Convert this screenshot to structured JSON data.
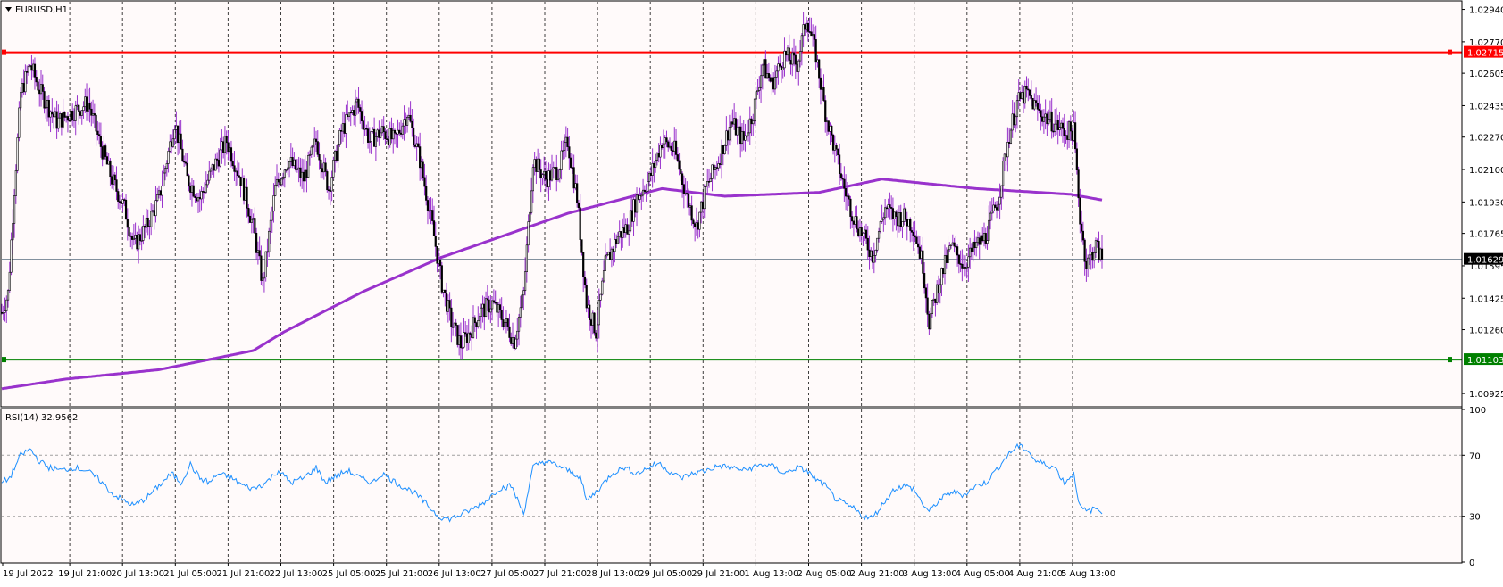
{
  "header": {
    "symbol_title": "EURUSD,H1",
    "menu_icon": "triangle-down-icon"
  },
  "indicator": {
    "label": "RSI(14) 32.9562"
  },
  "colors": {
    "background": "#fffafa",
    "candle": "#000000",
    "wick_purple": "#9932cc",
    "ma_line": "#9932cc",
    "resistance": "#ff0000",
    "support": "#008000",
    "rsi_line": "#1e90ff",
    "grid": "#000000",
    "current_price": "#708090"
  },
  "chart_data": [
    {
      "type": "candlestick",
      "title": "EURUSD,H1",
      "x_ticks": [
        "19 Jul 2022",
        "19 Jul 21:00",
        "20 Jul 13:00",
        "21 Jul 05:00",
        "21 Jul 21:00",
        "22 Jul 13:00",
        "25 Jul 05:00",
        "25 Jul 21:00",
        "26 Jul 13:00",
        "27 Jul 05:00",
        "27 Jul 21:00",
        "28 Jul 13:00",
        "29 Jul 05:00",
        "29 Jul 21:00",
        "1 Aug 13:00",
        "2 Aug 05:00",
        "2 Aug 21:00",
        "3 Aug 13:00",
        "4 Aug 05:00",
        "4 Aug 21:00",
        "5 Aug 13:00"
      ],
      "y_ticks": [
        "1.02940",
        "1.02770",
        "1.02605",
        "1.02435",
        "1.02270",
        "1.02100",
        "1.01930",
        "1.01765",
        "1.01595",
        "1.01425",
        "1.01260",
        "1.00925"
      ],
      "ylim": [
        1.0086,
        1.0298
      ],
      "levels": [
        {
          "name": "resistance",
          "value": 1.02715,
          "label": "1.02715"
        },
        {
          "name": "support",
          "value": 1.01103,
          "label": "1.01103"
        },
        {
          "name": "current-price",
          "value": 1.01629,
          "label": "1.01629"
        }
      ],
      "ma_series": {
        "anchors": [
          [
            0,
            1.0095
          ],
          [
            40,
            1.01
          ],
          [
            100,
            1.0105
          ],
          [
            160,
            1.0115
          ],
          [
            180,
            1.0125
          ],
          [
            230,
            1.0146
          ],
          [
            280,
            1.0164
          ],
          [
            360,
            1.0187
          ],
          [
            420,
            1.02
          ],
          [
            460,
            1.0196
          ],
          [
            520,
            1.0198
          ],
          [
            560,
            1.0205
          ],
          [
            620,
            1.02
          ],
          [
            680,
            1.0197
          ],
          [
            700,
            1.0194
          ]
        ]
      },
      "price_series": {
        "anchors": [
          [
            0,
            1.0135
          ],
          [
            4,
            1.0145
          ],
          [
            8,
            1.02
          ],
          [
            12,
            1.025
          ],
          [
            18,
            1.0265
          ],
          [
            25,
            1.025
          ],
          [
            35,
            1.0235
          ],
          [
            45,
            1.024
          ],
          [
            55,
            1.0245
          ],
          [
            62,
            1.0225
          ],
          [
            70,
            1.0205
          ],
          [
            78,
            1.019
          ],
          [
            84,
            1.017
          ],
          [
            92,
            1.018
          ],
          [
            100,
            1.0195
          ],
          [
            110,
            1.0235
          ],
          [
            118,
            1.0205
          ],
          [
            126,
            1.0195
          ],
          [
            134,
            1.021
          ],
          [
            143,
            1.0225
          ],
          [
            152,
            1.0205
          ],
          [
            160,
            1.018
          ],
          [
            166,
            1.015
          ],
          [
            174,
            1.02
          ],
          [
            182,
            1.0215
          ],
          [
            192,
            1.0205
          ],
          [
            200,
            1.0225
          ],
          [
            208,
            1.02
          ],
          [
            216,
            1.023
          ],
          [
            226,
            1.0245
          ],
          [
            234,
            1.0225
          ],
          [
            242,
            1.023
          ],
          [
            250,
            1.0225
          ],
          [
            258,
            1.024
          ],
          [
            266,
            1.0215
          ],
          [
            274,
            1.018
          ],
          [
            280,
            1.015
          ],
          [
            286,
            1.013
          ],
          [
            292,
            1.0118
          ],
          [
            298,
            1.0125
          ],
          [
            304,
            1.0135
          ],
          [
            312,
            1.014
          ],
          [
            320,
            1.013
          ],
          [
            326,
            1.012
          ],
          [
            332,
            1.0145
          ],
          [
            338,
            1.0215
          ],
          [
            346,
            1.0205
          ],
          [
            354,
            1.021
          ],
          [
            360,
            1.0225
          ],
          [
            366,
            1.0195
          ],
          [
            372,
            1.014
          ],
          [
            378,
            1.0125
          ],
          [
            384,
            1.016
          ],
          [
            392,
            1.0175
          ],
          [
            398,
            1.018
          ],
          [
            404,
            1.0195
          ],
          [
            412,
            1.0205
          ],
          [
            420,
            1.0225
          ],
          [
            428,
            1.022
          ],
          [
            436,
            1.0195
          ],
          [
            442,
            1.018
          ],
          [
            448,
            1.02
          ],
          [
            456,
            1.0215
          ],
          [
            464,
            1.0235
          ],
          [
            472,
            1.0225
          ],
          [
            478,
            1.024
          ],
          [
            484,
            1.0265
          ],
          [
            490,
            1.0255
          ],
          [
            498,
            1.027
          ],
          [
            506,
            1.0265
          ],
          [
            512,
            1.029
          ],
          [
            518,
            1.027
          ],
          [
            524,
            1.024
          ],
          [
            530,
            1.022
          ],
          [
            536,
            1.02
          ],
          [
            542,
            1.0185
          ],
          [
            548,
            1.0175
          ],
          [
            554,
            1.0165
          ],
          [
            562,
            1.019
          ],
          [
            568,
            1.0185
          ],
          [
            574,
            1.0185
          ],
          [
            580,
            1.018
          ],
          [
            586,
            1.016
          ],
          [
            590,
            1.013
          ],
          [
            596,
            1.015
          ],
          [
            604,
            1.017
          ],
          [
            612,
            1.016
          ],
          [
            620,
            1.017
          ],
          [
            626,
            1.0175
          ],
          [
            634,
            1.0195
          ],
          [
            640,
            1.0225
          ],
          [
            646,
            1.0245
          ],
          [
            652,
            1.025
          ],
          [
            660,
            1.024
          ],
          [
            668,
            1.0235
          ],
          [
            676,
            1.023
          ],
          [
            682,
            1.023
          ],
          [
            686,
            1.0185
          ],
          [
            690,
            1.016
          ],
          [
            696,
            1.017
          ],
          [
            700,
            1.0163
          ]
        ]
      }
    },
    {
      "type": "line",
      "title": "RSI(14) 32.9562",
      "y_ticks": [
        "100",
        "70",
        "30",
        "0"
      ],
      "ylim": [
        0,
        100
      ],
      "levels": [
        70,
        30
      ],
      "rsi_series": {
        "anchors": [
          [
            0,
            52
          ],
          [
            5,
            55
          ],
          [
            12,
            70
          ],
          [
            18,
            74
          ],
          [
            24,
            66
          ],
          [
            30,
            62
          ],
          [
            38,
            60
          ],
          [
            46,
            62
          ],
          [
            54,
            60
          ],
          [
            62,
            54
          ],
          [
            70,
            45
          ],
          [
            78,
            40
          ],
          [
            84,
            37
          ],
          [
            92,
            42
          ],
          [
            100,
            50
          ],
          [
            108,
            58
          ],
          [
            114,
            52
          ],
          [
            120,
            64
          ],
          [
            126,
            55
          ],
          [
            132,
            52
          ],
          [
            138,
            58
          ],
          [
            146,
            55
          ],
          [
            154,
            50
          ],
          [
            160,
            48
          ],
          [
            168,
            52
          ],
          [
            176,
            60
          ],
          [
            184,
            52
          ],
          [
            192,
            55
          ],
          [
            200,
            62
          ],
          [
            206,
            52
          ],
          [
            212,
            56
          ],
          [
            220,
            60
          ],
          [
            228,
            55
          ],
          [
            236,
            52
          ],
          [
            242,
            58
          ],
          [
            248,
            54
          ],
          [
            254,
            50
          ],
          [
            262,
            46
          ],
          [
            270,
            38
          ],
          [
            278,
            30
          ],
          [
            284,
            28
          ],
          [
            292,
            31
          ],
          [
            300,
            35
          ],
          [
            308,
            40
          ],
          [
            316,
            48
          ],
          [
            324,
            50
          ],
          [
            332,
            32
          ],
          [
            338,
            62
          ],
          [
            344,
            66
          ],
          [
            352,
            64
          ],
          [
            360,
            60
          ],
          [
            368,
            56
          ],
          [
            372,
            40
          ],
          [
            380,
            48
          ],
          [
            388,
            58
          ],
          [
            396,
            62
          ],
          [
            404,
            58
          ],
          [
            412,
            62
          ],
          [
            418,
            65
          ],
          [
            424,
            60
          ],
          [
            432,
            55
          ],
          [
            440,
            58
          ],
          [
            448,
            60
          ],
          [
            456,
            63
          ],
          [
            464,
            62
          ],
          [
            472,
            60
          ],
          [
            478,
            62
          ],
          [
            484,
            64
          ],
          [
            490,
            63
          ],
          [
            498,
            58
          ],
          [
            506,
            62
          ],
          [
            512,
            60
          ],
          [
            518,
            54
          ],
          [
            524,
            50
          ],
          [
            530,
            42
          ],
          [
            536,
            38
          ],
          [
            542,
            35
          ],
          [
            548,
            30
          ],
          [
            554,
            29
          ],
          [
            562,
            40
          ],
          [
            568,
            48
          ],
          [
            574,
            50
          ],
          [
            580,
            48
          ],
          [
            586,
            38
          ],
          [
            590,
            33
          ],
          [
            596,
            40
          ],
          [
            604,
            46
          ],
          [
            612,
            44
          ],
          [
            620,
            50
          ],
          [
            626,
            52
          ],
          [
            634,
            62
          ],
          [
            640,
            70
          ],
          [
            646,
            76
          ],
          [
            652,
            74
          ],
          [
            658,
            66
          ],
          [
            664,
            64
          ],
          [
            670,
            62
          ],
          [
            676,
            52
          ],
          [
            682,
            58
          ],
          [
            686,
            36
          ],
          [
            690,
            33
          ],
          [
            696,
            35
          ],
          [
            700,
            33
          ]
        ]
      }
    }
  ]
}
